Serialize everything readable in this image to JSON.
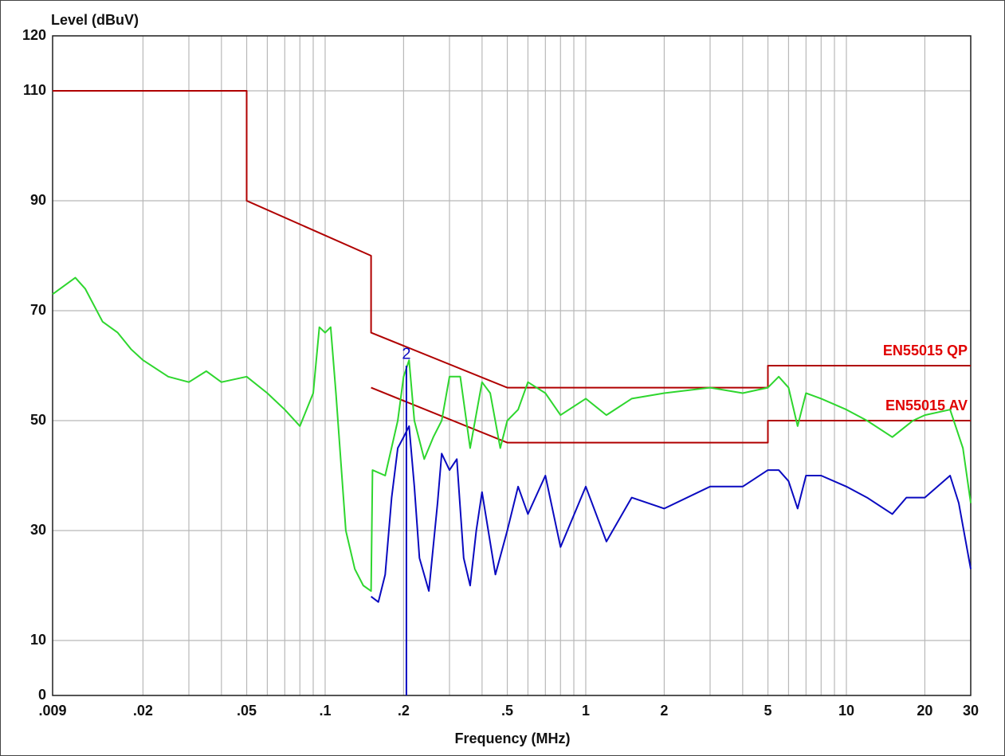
{
  "chart_data": {
    "type": "line",
    "y_label": "Level (dBuV)",
    "x_label": "Frequency (MHz)",
    "xscale": "log",
    "grid": true,
    "xlim": [
      0.009,
      30
    ],
    "ylim": [
      0,
      120
    ],
    "yticks": [
      0,
      10,
      30,
      50,
      70,
      90,
      110,
      120
    ],
    "xticks": [
      {
        "value": 0.009,
        "label": ".009"
      },
      {
        "value": 0.02,
        "label": ".02"
      },
      {
        "value": 0.05,
        "label": ".05"
      },
      {
        "value": 0.1,
        "label": ".1"
      },
      {
        "value": 0.2,
        "label": ".2"
      },
      {
        "value": 0.5,
        "label": ".5"
      },
      1,
      2,
      5,
      10,
      20,
      30
    ],
    "x_minor_grid": [
      0.03,
      0.04,
      0.06,
      0.07,
      0.08,
      0.09,
      0.3,
      0.4,
      0.6,
      0.7,
      0.8,
      0.9,
      3,
      4,
      6,
      7,
      8,
      9
    ],
    "series": [
      {
        "name": "EN55015 QP",
        "color": "#b00000",
        "label_color": "#e00000",
        "x": [
          0.009,
          0.05,
          0.05,
          0.15,
          0.15,
          0.5,
          5,
          5,
          30
        ],
        "values": [
          110,
          110,
          90,
          80,
          66,
          56,
          56,
          60,
          60
        ]
      },
      {
        "name": "EN55015 AV",
        "color": "#b00000",
        "label_color": "#e00000",
        "x": [
          0.15,
          0.5,
          5,
          5,
          30
        ],
        "values": [
          56,
          46,
          46,
          50,
          50
        ]
      },
      {
        "color": "#2ed62e",
        "x": [
          0.009,
          0.011,
          0.012,
          0.014,
          0.016,
          0.018,
          0.02,
          0.025,
          0.03,
          0.035,
          0.04,
          0.05,
          0.06,
          0.07,
          0.08,
          0.09,
          0.095,
          0.1,
          0.105,
          0.11,
          0.12,
          0.13,
          0.14,
          0.15,
          0.152,
          0.17,
          0.19,
          0.2,
          0.21,
          0.22,
          0.24,
          0.26,
          0.28,
          0.3,
          0.33,
          0.36,
          0.4,
          0.43,
          0.47,
          0.5,
          0.55,
          0.6,
          0.7,
          0.8,
          1,
          1.2,
          1.5,
          2,
          3,
          4,
          5,
          5.5,
          6,
          6.5,
          7,
          8,
          10,
          12,
          15,
          18,
          20,
          25,
          28,
          30
        ],
        "values": [
          73,
          76,
          74,
          68,
          66,
          63,
          61,
          58,
          57,
          59,
          57,
          58,
          55,
          52,
          49,
          55,
          67,
          66,
          67,
          55,
          30,
          23,
          20,
          19,
          41,
          40,
          50,
          58,
          61,
          50,
          43,
          47,
          50,
          58,
          58,
          45,
          57,
          55,
          45,
          50,
          52,
          57,
          55,
          51,
          54,
          51,
          54,
          55,
          56,
          55,
          56,
          58,
          56,
          49,
          55,
          54,
          52,
          50,
          47,
          50,
          51,
          52,
          45,
          35
        ]
      },
      {
        "color": "#0a0ac0",
        "x": [
          0.15,
          0.16,
          0.17,
          0.18,
          0.19,
          0.2,
          0.21,
          0.22,
          0.23,
          0.25,
          0.27,
          0.28,
          0.3,
          0.32,
          0.34,
          0.36,
          0.38,
          0.4,
          0.45,
          0.5,
          0.55,
          0.6,
          0.7,
          0.8,
          1,
          1.2,
          1.5,
          2,
          3,
          4,
          5,
          5.5,
          6,
          6.5,
          7,
          8,
          10,
          12,
          15,
          17,
          20,
          25,
          27,
          30
        ],
        "values": [
          18,
          17,
          22,
          36,
          45,
          47,
          49,
          38,
          25,
          19,
          35,
          44,
          41,
          43,
          25,
          20,
          30,
          37,
          22,
          30,
          38,
          33,
          40,
          27,
          38,
          28,
          36,
          34,
          38,
          38,
          41,
          41,
          39,
          34,
          40,
          40,
          38,
          36,
          33,
          36,
          36,
          40,
          35,
          23
        ]
      }
    ],
    "markers": [
      {
        "label": "2",
        "x": 0.205,
        "y": 60,
        "color": "#0a0ac0"
      }
    ]
  }
}
